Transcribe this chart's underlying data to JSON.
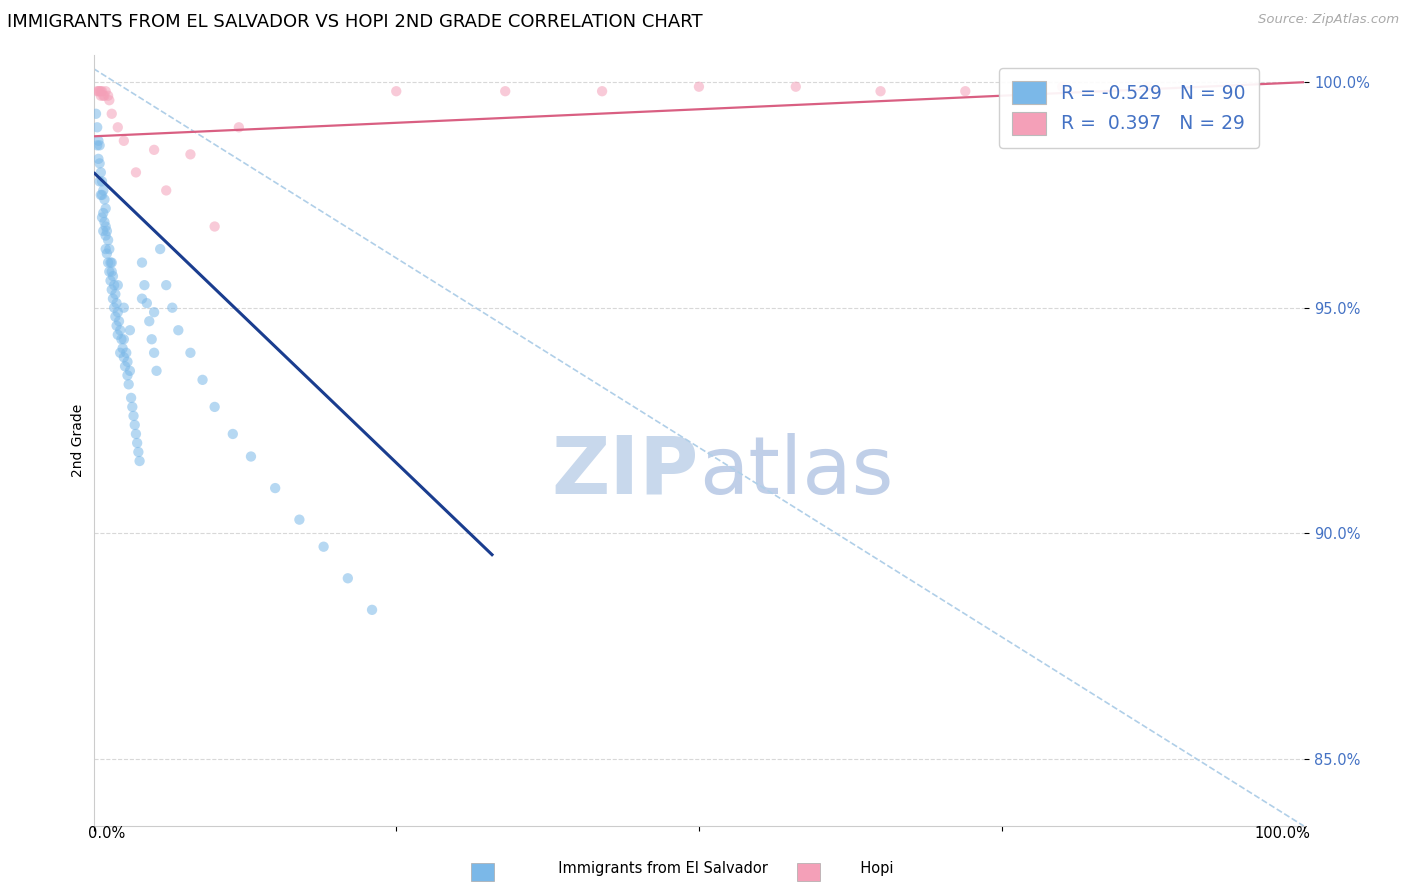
{
  "title": "IMMIGRANTS FROM EL SALVADOR VS HOPI 2ND GRADE CORRELATION CHART",
  "source": "Source: ZipAtlas.com",
  "ylabel": "2nd Grade",
  "watermark_top": "ZIP",
  "watermark_bot": "atlas",
  "blue_color": "#7bb8e8",
  "pink_color": "#f4a0b8",
  "blue_line_color": "#1a3d8f",
  "pink_line_color": "#d95f82",
  "dashed_line_color": "#b0cfe8",
  "marker_size": 55,
  "alpha": 0.55,
  "blue_scatter_x": [
    0.002,
    0.003,
    0.003,
    0.004,
    0.004,
    0.005,
    0.005,
    0.005,
    0.006,
    0.006,
    0.007,
    0.007,
    0.007,
    0.008,
    0.008,
    0.008,
    0.009,
    0.009,
    0.01,
    0.01,
    0.01,
    0.011,
    0.011,
    0.012,
    0.012,
    0.013,
    0.013,
    0.014,
    0.014,
    0.015,
    0.015,
    0.016,
    0.016,
    0.017,
    0.017,
    0.018,
    0.018,
    0.019,
    0.019,
    0.02,
    0.02,
    0.021,
    0.022,
    0.022,
    0.023,
    0.024,
    0.025,
    0.025,
    0.026,
    0.027,
    0.028,
    0.028,
    0.029,
    0.03,
    0.031,
    0.032,
    0.033,
    0.034,
    0.035,
    0.036,
    0.037,
    0.038,
    0.04,
    0.042,
    0.044,
    0.046,
    0.048,
    0.05,
    0.052,
    0.055,
    0.06,
    0.065,
    0.07,
    0.08,
    0.09,
    0.1,
    0.115,
    0.13,
    0.15,
    0.17,
    0.19,
    0.21,
    0.23,
    0.01,
    0.015,
    0.02,
    0.025,
    0.03,
    0.04,
    0.05
  ],
  "blue_scatter_y": [
    0.993,
    0.99,
    0.986,
    0.987,
    0.983,
    0.986,
    0.982,
    0.978,
    0.98,
    0.975,
    0.978,
    0.975,
    0.97,
    0.976,
    0.971,
    0.967,
    0.974,
    0.969,
    0.972,
    0.968,
    0.963,
    0.967,
    0.962,
    0.965,
    0.96,
    0.963,
    0.958,
    0.96,
    0.956,
    0.958,
    0.954,
    0.957,
    0.952,
    0.955,
    0.95,
    0.953,
    0.948,
    0.951,
    0.946,
    0.949,
    0.944,
    0.947,
    0.945,
    0.94,
    0.943,
    0.941,
    0.939,
    0.943,
    0.937,
    0.94,
    0.935,
    0.938,
    0.933,
    0.936,
    0.93,
    0.928,
    0.926,
    0.924,
    0.922,
    0.92,
    0.918,
    0.916,
    0.96,
    0.955,
    0.951,
    0.947,
    0.943,
    0.94,
    0.936,
    0.963,
    0.955,
    0.95,
    0.945,
    0.94,
    0.934,
    0.928,
    0.922,
    0.917,
    0.91,
    0.903,
    0.897,
    0.89,
    0.883,
    0.966,
    0.96,
    0.955,
    0.95,
    0.945,
    0.952,
    0.949
  ],
  "pink_scatter_x": [
    0.003,
    0.004,
    0.005,
    0.006,
    0.006,
    0.007,
    0.008,
    0.009,
    0.01,
    0.012,
    0.013,
    0.015,
    0.02,
    0.025,
    0.035,
    0.05,
    0.06,
    0.08,
    0.1,
    0.12,
    0.25,
    0.34,
    0.42,
    0.5,
    0.58,
    0.65,
    0.72,
    0.8,
    0.87
  ],
  "pink_scatter_y": [
    0.998,
    0.998,
    0.998,
    0.998,
    0.997,
    0.998,
    0.997,
    0.997,
    0.998,
    0.997,
    0.996,
    0.993,
    0.99,
    0.987,
    0.98,
    0.985,
    0.976,
    0.984,
    0.968,
    0.99,
    0.998,
    0.998,
    0.998,
    0.999,
    0.999,
    0.998,
    0.998,
    0.999,
    0.999
  ],
  "blue_line_x": [
    0.0,
    0.33
  ],
  "blue_line_y": [
    0.98,
    0.895
  ],
  "pink_line_x": [
    0.0,
    1.0
  ],
  "pink_line_y": [
    0.988,
    1.0
  ],
  "dashed_line_x": [
    0.0,
    1.0
  ],
  "dashed_line_y": [
    1.003,
    0.835
  ],
  "xlim": [
    0.0,
    1.0
  ],
  "ylim": [
    0.835,
    1.006
  ],
  "y_tick_positions": [
    1.0,
    0.95,
    0.9,
    0.85
  ],
  "y_tick_labels": [
    "100.0%",
    "95.0%",
    "90.0%",
    "85.0%"
  ],
  "grid_color": "#d8d8d8",
  "watermark_color": "#cfdff0",
  "title_fontsize": 13,
  "axis_label_fontsize": 10,
  "tick_fontsize": 10.5,
  "legend_fontsize": 13.5
}
